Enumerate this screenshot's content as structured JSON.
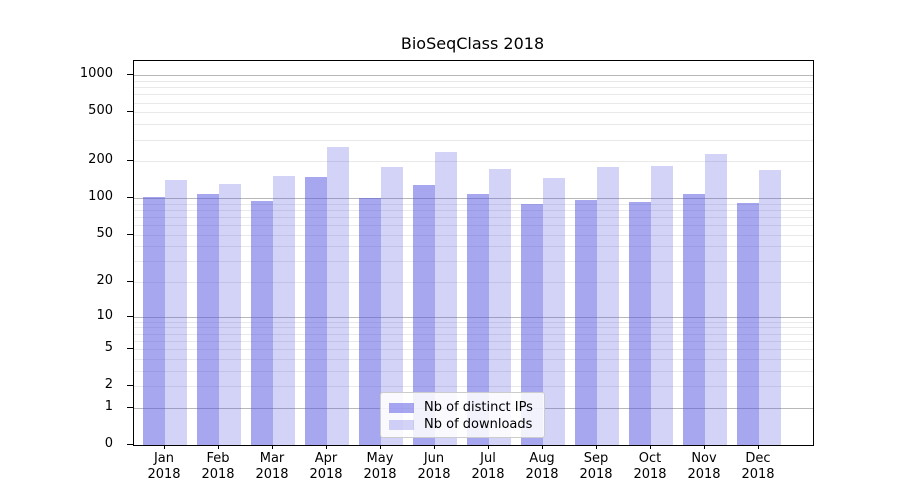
{
  "title": "BioSeqClass 2018",
  "y_axis": {
    "tick_labels": [
      "0",
      "1",
      "2",
      "5",
      "10",
      "20",
      "50",
      "100",
      "200",
      "500",
      "1000"
    ],
    "tick_values": [
      0,
      1,
      2,
      5,
      10,
      20,
      50,
      100,
      200,
      500,
      1000
    ],
    "scale": "log10(value+1)"
  },
  "x_axis": {
    "year": "2018",
    "months": [
      "Jan",
      "Feb",
      "Mar",
      "Apr",
      "May",
      "Jun",
      "Jul",
      "Aug",
      "Sep",
      "Oct",
      "Nov",
      "Dec"
    ]
  },
  "legend": {
    "items": [
      {
        "label": "Nb of distinct IPs",
        "series": "distinct_ips"
      },
      {
        "label": "Nb of downloads",
        "series": "downloads"
      }
    ]
  },
  "colors": {
    "bar_base": "#5050E1",
    "distinct_ips_alpha": 0.5,
    "downloads_alpha": 0.25,
    "major_grid": "#b8b8b8",
    "minor_grid": "#e9e9e9",
    "axis": "#000000"
  },
  "chart_data": {
    "type": "bar",
    "title": "BioSeqClass 2018",
    "categories": [
      "Jan 2018",
      "Feb 2018",
      "Mar 2018",
      "Apr 2018",
      "May 2018",
      "Jun 2018",
      "Jul 2018",
      "Aug 2018",
      "Sep 2018",
      "Oct 2018",
      "Nov 2018",
      "Dec 2018"
    ],
    "series": [
      {
        "name": "Nb of distinct IPs",
        "values": [
          103,
          108,
          94,
          150,
          101,
          128,
          108,
          90,
          97,
          93,
          108,
          91
        ]
      },
      {
        "name": "Nb of downloads",
        "values": [
          140,
          130,
          151,
          260,
          179,
          240,
          172,
          147,
          181,
          184,
          231,
          169
        ]
      }
    ],
    "xlabel": "",
    "ylabel": "",
    "yscale": "log1p",
    "y_ticks": [
      0,
      1,
      2,
      5,
      10,
      20,
      50,
      100,
      200,
      500,
      1000
    ],
    "ylim": [
      0,
      1360
    ],
    "grid": true,
    "legend_position": "lower center"
  }
}
